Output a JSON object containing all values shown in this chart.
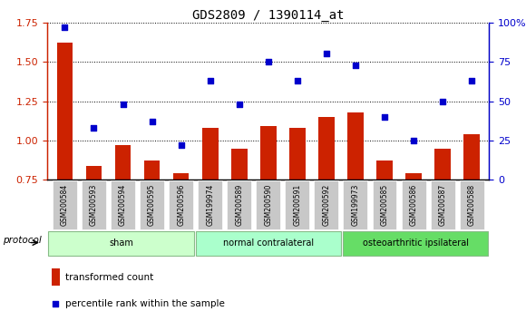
{
  "title": "GDS2809 / 1390114_at",
  "categories": [
    "GSM200584",
    "GSM200593",
    "GSM200594",
    "GSM200595",
    "GSM200596",
    "GSM199974",
    "GSM200589",
    "GSM200590",
    "GSM200591",
    "GSM200592",
    "GSM199973",
    "GSM200585",
    "GSM200586",
    "GSM200587",
    "GSM200588"
  ],
  "bar_values": [
    1.62,
    0.84,
    0.97,
    0.87,
    0.79,
    1.08,
    0.95,
    1.09,
    1.08,
    1.15,
    1.18,
    0.87,
    0.79,
    0.95,
    1.04
  ],
  "dot_values": [
    97,
    33,
    48,
    37,
    22,
    63,
    48,
    75,
    63,
    80,
    73,
    40,
    25,
    50,
    63
  ],
  "bar_color": "#cc2200",
  "dot_color": "#0000cc",
  "ylim_left": [
    0.75,
    1.75
  ],
  "ylim_right": [
    0,
    100
  ],
  "yticks_left": [
    0.75,
    1.0,
    1.25,
    1.5,
    1.75
  ],
  "yticks_right": [
    0,
    25,
    50,
    75,
    100
  ],
  "groups": [
    {
      "label": "sham",
      "start": 0,
      "end": 5
    },
    {
      "label": "normal contralateral",
      "start": 5,
      "end": 10
    },
    {
      "label": "osteoarthritic ipsilateral",
      "start": 10,
      "end": 15
    }
  ],
  "group_colors": [
    "#ccffcc",
    "#aaffcc",
    "#66dd66"
  ],
  "protocol_label": "protocol",
  "legend_bar_label": "transformed count",
  "legend_dot_label": "percentile rank within the sample",
  "plot_bg": "#ffffff",
  "tick_label_bg": "#c8c8c8",
  "right_axis_color": "#0000cc",
  "left_axis_color": "#cc2200"
}
